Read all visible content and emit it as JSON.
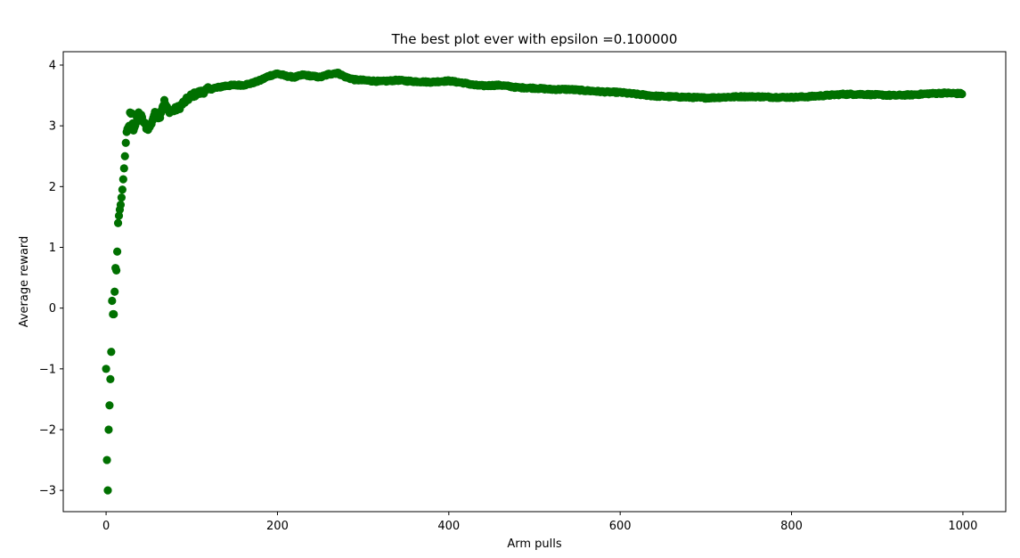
{
  "chart_data": {
    "type": "scatter",
    "title": "The best plot ever with epsilon =0.100000",
    "xlabel": "Arm pulls",
    "ylabel": "Average reward",
    "xlim": [
      -50,
      1050
    ],
    "ylim": [
      -3.35,
      4.22
    ],
    "xticks": [
      0,
      200,
      400,
      600,
      800,
      1000
    ],
    "yticks": [
      -3,
      -2,
      -1,
      0,
      1,
      2,
      3,
      4
    ],
    "xtick_labels": [
      "0",
      "200",
      "400",
      "600",
      "800",
      "1000"
    ],
    "ytick_labels": [
      "−3",
      "−2",
      "−1",
      "0",
      "1",
      "2",
      "3",
      "4"
    ],
    "grid": false,
    "marker_color": "#007000",
    "n_points": 1000,
    "anchor_points": [
      [
        0,
        -1.0
      ],
      [
        1,
        -2.5
      ],
      [
        2,
        -3.0
      ],
      [
        3,
        -2.0
      ],
      [
        4,
        -1.6
      ],
      [
        5,
        -1.17
      ],
      [
        6,
        -0.72
      ],
      [
        7,
        0.12
      ],
      [
        8,
        -0.1
      ],
      [
        9,
        -0.1
      ],
      [
        10,
        0.27
      ],
      [
        11,
        0.66
      ],
      [
        12,
        0.62
      ],
      [
        13,
        0.93
      ],
      [
        14,
        1.4
      ],
      [
        15,
        1.52
      ],
      [
        16,
        1.62
      ],
      [
        17,
        1.7
      ],
      [
        18,
        1.82
      ],
      [
        19,
        1.95
      ],
      [
        20,
        2.12
      ],
      [
        21,
        2.3
      ],
      [
        22,
        2.5
      ],
      [
        23,
        2.72
      ],
      [
        24,
        2.9
      ],
      [
        25,
        2.95
      ],
      [
        27,
        3.0
      ],
      [
        28,
        3.22
      ],
      [
        30,
        3.18
      ],
      [
        32,
        2.95
      ],
      [
        35,
        3.05
      ],
      [
        38,
        3.2
      ],
      [
        41,
        3.15
      ],
      [
        44,
        3.05
      ],
      [
        47,
        2.98
      ],
      [
        50,
        2.96
      ],
      [
        53,
        3.05
      ],
      [
        56,
        3.18
      ],
      [
        59,
        3.22
      ],
      [
        62,
        3.12
      ],
      [
        65,
        3.28
      ],
      [
        68,
        3.4
      ],
      [
        72,
        3.25
      ],
      [
        78,
        3.25
      ],
      [
        85,
        3.3
      ],
      [
        92,
        3.4
      ],
      [
        100,
        3.5
      ],
      [
        110,
        3.55
      ],
      [
        120,
        3.6
      ],
      [
        130,
        3.63
      ],
      [
        140,
        3.66
      ],
      [
        150,
        3.67
      ],
      [
        160,
        3.67
      ],
      [
        170,
        3.7
      ],
      [
        180,
        3.75
      ],
      [
        190,
        3.82
      ],
      [
        200,
        3.86
      ],
      [
        210,
        3.82
      ],
      [
        220,
        3.8
      ],
      [
        230,
        3.84
      ],
      [
        240,
        3.82
      ],
      [
        250,
        3.8
      ],
      [
        260,
        3.85
      ],
      [
        270,
        3.87
      ],
      [
        280,
        3.8
      ],
      [
        290,
        3.76
      ],
      [
        300,
        3.75
      ],
      [
        320,
        3.73
      ],
      [
        340,
        3.75
      ],
      [
        360,
        3.73
      ],
      [
        380,
        3.72
      ],
      [
        400,
        3.74
      ],
      [
        410,
        3.72
      ],
      [
        420,
        3.7
      ],
      [
        430,
        3.67
      ],
      [
        440,
        3.66
      ],
      [
        460,
        3.67
      ],
      [
        480,
        3.63
      ],
      [
        500,
        3.62
      ],
      [
        520,
        3.6
      ],
      [
        540,
        3.6
      ],
      [
        560,
        3.58
      ],
      [
        580,
        3.56
      ],
      [
        600,
        3.55
      ],
      [
        620,
        3.52
      ],
      [
        640,
        3.49
      ],
      [
        660,
        3.48
      ],
      [
        680,
        3.47
      ],
      [
        700,
        3.46
      ],
      [
        720,
        3.47
      ],
      [
        740,
        3.48
      ],
      [
        760,
        3.48
      ],
      [
        780,
        3.47
      ],
      [
        800,
        3.47
      ],
      [
        820,
        3.48
      ],
      [
        840,
        3.5
      ],
      [
        860,
        3.52
      ],
      [
        880,
        3.52
      ],
      [
        900,
        3.51
      ],
      [
        920,
        3.5
      ],
      [
        940,
        3.51
      ],
      [
        960,
        3.53
      ],
      [
        980,
        3.54
      ],
      [
        999,
        3.53
      ]
    ]
  }
}
